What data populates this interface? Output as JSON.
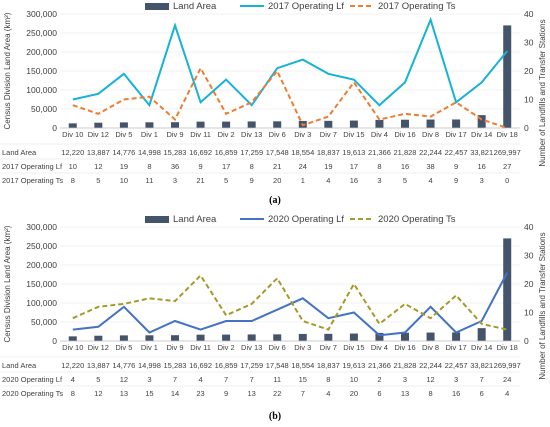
{
  "chart_data": [
    {
      "type": "bar",
      "panel_label": "(a)",
      "categories": [
        "Div 10",
        "Div 12",
        "Div 5",
        "Div 1",
        "Div 9",
        "Div 11",
        "Div 2",
        "Div 13",
        "Div 6",
        "Div 3",
        "Div 7",
        "Div 15",
        "Div 4",
        "Div 16",
        "Div 8",
        "Div 17",
        "Div 14",
        "Div 18"
      ],
      "land_area": [
        12220,
        13887,
        14776,
        14998,
        15283,
        16692,
        16859,
        17259,
        17548,
        18554,
        18837,
        19613,
        21366,
        21828,
        22244,
        22457,
        33821,
        269997
      ],
      "series": [
        {
          "name": "Land Area",
          "kind": "bar",
          "axis": "left",
          "color": "#44546a",
          "values": [
            12220,
            13887,
            14776,
            14998,
            15283,
            16692,
            16859,
            17259,
            17548,
            18554,
            18837,
            19613,
            21366,
            21828,
            22244,
            22457,
            33821,
            269997
          ]
        },
        {
          "name": "2017 Operating Lf",
          "kind": "line",
          "axis": "right",
          "color": "#17b2d6",
          "dashed": false,
          "values": [
            10,
            12,
            19,
            8,
            36,
            9,
            17,
            8,
            21,
            24,
            19,
            17,
            8,
            16,
            38,
            9,
            16,
            27
          ]
        },
        {
          "name": "2017 Operating Ts",
          "kind": "line",
          "axis": "right",
          "color": "#ed7d31",
          "dashed": true,
          "values": [
            8,
            5,
            10,
            11,
            3,
            21,
            5,
            9,
            20,
            1,
            4,
            16,
            3,
            5,
            4,
            9,
            3,
            0
          ]
        }
      ],
      "table_rows": [
        {
          "label": "Land Area",
          "values": [
            "12,220",
            "13,887",
            "14,776",
            "14,998",
            "15,283",
            "16,692",
            "16,859",
            "17,259",
            "17,548",
            "18,554",
            "18,837",
            "19,613",
            "21,366",
            "21,828",
            "22,244",
            "22,457",
            "33,821",
            "269,997"
          ]
        },
        {
          "label": "2017 Operating Lf",
          "values": [
            "10",
            "12",
            "19",
            "8",
            "36",
            "9",
            "17",
            "8",
            "21",
            "24",
            "19",
            "17",
            "8",
            "16",
            "38",
            "9",
            "16",
            "27"
          ]
        },
        {
          "label": "2017 Operating Ts",
          "values": [
            "8",
            "5",
            "10",
            "11",
            "3",
            "21",
            "5",
            "9",
            "20",
            "1",
            "4",
            "16",
            "3",
            "5",
            "4",
            "9",
            "3",
            "0"
          ]
        }
      ],
      "ylabel": "Census Division Land Area (km²)",
      "y2label": "Number of Landfills and Transfer Stations",
      "ylim": [
        0,
        300000
      ],
      "y2lim": [
        0,
        40
      ],
      "yticks": [
        "0",
        "50,000",
        "100,000",
        "150,000",
        "200,000",
        "250,000",
        "300,000"
      ],
      "y2ticks": [
        "0",
        "10",
        "20",
        "30",
        "40"
      ],
      "legend_position": "top-center"
    },
    {
      "type": "bar",
      "panel_label": "(b)",
      "categories": [
        "Div 10",
        "Div 12",
        "Div 5",
        "Div 1",
        "Div 9",
        "Div 11",
        "Div 2",
        "Div 13",
        "Div 6",
        "Div 3",
        "Div 7",
        "Div 15",
        "Div 4",
        "Div 16",
        "Div 8",
        "Div 17",
        "Div 14",
        "Div 18"
      ],
      "land_area": [
        12220,
        13887,
        14776,
        14998,
        15283,
        16692,
        16859,
        17259,
        17548,
        18554,
        18837,
        19613,
        21366,
        21828,
        22244,
        22457,
        33821,
        269997
      ],
      "series": [
        {
          "name": "Land Area",
          "kind": "bar",
          "axis": "left",
          "color": "#44546a",
          "values": [
            12220,
            13887,
            14776,
            14998,
            15283,
            16692,
            16859,
            17259,
            17548,
            18554,
            18837,
            19613,
            21366,
            21828,
            22244,
            22457,
            33821,
            269997
          ]
        },
        {
          "name": "2020 Operating Lf",
          "kind": "line",
          "axis": "right",
          "color": "#4472c4",
          "dashed": false,
          "values": [
            4,
            5,
            12,
            3,
            7,
            4,
            7,
            7,
            11,
            15,
            8,
            10,
            2,
            3,
            12,
            3,
            7,
            24
          ]
        },
        {
          "name": "2020 Operating Ts",
          "kind": "line",
          "axis": "right",
          "color": "#a39a2b",
          "dashed": true,
          "values": [
            8,
            12,
            13,
            15,
            14,
            23,
            9,
            13,
            22,
            7,
            4,
            20,
            6,
            13,
            8,
            16,
            6,
            4
          ]
        }
      ],
      "table_rows": [
        {
          "label": "Land Area",
          "values": [
            "12,220",
            "13,887",
            "14,776",
            "14,998",
            "15,283",
            "16,692",
            "16,859",
            "17,259",
            "17,548",
            "18,554",
            "18,837",
            "19,613",
            "21,366",
            "21,828",
            "22,244",
            "22,457",
            "33,821",
            "269,997"
          ]
        },
        {
          "label": "2020 Operating Lf",
          "values": [
            "4",
            "5",
            "12",
            "3",
            "7",
            "4",
            "7",
            "7",
            "11",
            "15",
            "8",
            "10",
            "2",
            "3",
            "12",
            "3",
            "7",
            "24"
          ]
        },
        {
          "label": "2020 Operating Ts",
          "values": [
            "8",
            "12",
            "13",
            "15",
            "14",
            "23",
            "9",
            "13",
            "22",
            "7",
            "4",
            "20",
            "6",
            "13",
            "8",
            "16",
            "6",
            "4"
          ]
        }
      ],
      "ylabel": "Census Division Land Area (km²)",
      "y2label": "Number of Landfills and Transfer Stations",
      "ylim": [
        0,
        300000
      ],
      "y2lim": [
        0,
        40
      ],
      "yticks": [
        "0",
        "50,000",
        "100,000",
        "150,000",
        "200,000",
        "250,000",
        "300,000"
      ],
      "y2ticks": [
        "0",
        "10",
        "20",
        "30",
        "40"
      ],
      "legend_position": "top-center"
    }
  ]
}
